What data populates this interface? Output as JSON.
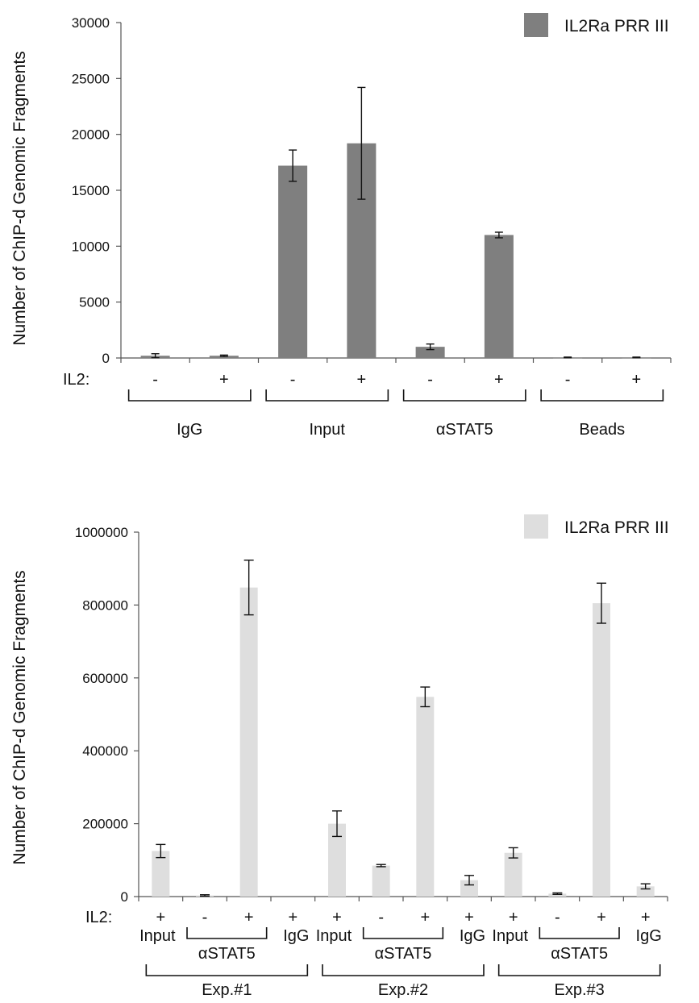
{
  "chart_data": [
    {
      "type": "bar",
      "ylabel": "Number of ChIP-d Genomic Fragments",
      "ylim": [
        0,
        30000
      ],
      "yticks": [
        "0",
        "5000",
        "10000",
        "15000",
        "20000",
        "25000",
        "30000"
      ],
      "row_label": "IL2:",
      "il2": [
        "-",
        "+",
        "-",
        "+",
        "-",
        "+",
        "-",
        "+"
      ],
      "groups": [
        {
          "label": "IgG",
          "bars": [
            0,
            1
          ]
        },
        {
          "label": "Input",
          "bars": [
            2,
            3
          ]
        },
        {
          "label": "αSTAT5",
          "bars": [
            4,
            5
          ]
        },
        {
          "label": "Beads",
          "bars": [
            6,
            7
          ]
        }
      ],
      "series": [
        {
          "name": "IL2Ra PRR III",
          "color": "#7f7f7f",
          "values": [
            200,
            200,
            17200,
            19200,
            1000,
            11000,
            50,
            50
          ],
          "errors": [
            180,
            60,
            1400,
            5000,
            250,
            250,
            30,
            30
          ]
        }
      ],
      "legend_position": "top-right",
      "grid": false
    },
    {
      "type": "bar",
      "ylabel": "Number of ChIP-d Genomic Fragments",
      "ylim": [
        0,
        1000000
      ],
      "yticks": [
        "0",
        "200000",
        "400000",
        "600000",
        "800000",
        "1000000"
      ],
      "row_label": "IL2:",
      "il2": [
        "+",
        "-",
        "+",
        "+",
        "+",
        "-",
        "+",
        "+",
        "+",
        "-",
        "+",
        "+"
      ],
      "categories": [
        "Input",
        "αSTAT5",
        "αSTAT5",
        "IgG",
        "Input",
        "αSTAT5",
        "αSTAT5",
        "IgG",
        "Input",
        "αSTAT5",
        "αSTAT5",
        "IgG"
      ],
      "sublabels": [
        {
          "label": "Input",
          "bars": [
            0
          ]
        },
        {
          "label": "αSTAT5",
          "bars": [
            1,
            2
          ],
          "bracket": true
        },
        {
          "label": "IgG",
          "bars": [
            3
          ]
        },
        {
          "label": "Input",
          "bars": [
            4
          ]
        },
        {
          "label": "αSTAT5",
          "bars": [
            5,
            6
          ],
          "bracket": true
        },
        {
          "label": "IgG",
          "bars": [
            7
          ]
        },
        {
          "label": "Input",
          "bars": [
            8
          ]
        },
        {
          "label": "αSTAT5",
          "bars": [
            9,
            10
          ],
          "bracket": true
        },
        {
          "label": "IgG",
          "bars": [
            11
          ]
        }
      ],
      "experiments": [
        {
          "label": "Exp.#1",
          "bars": [
            0,
            3
          ]
        },
        {
          "label": "Exp.#2",
          "bars": [
            4,
            7
          ]
        },
        {
          "label": "Exp.#3",
          "bars": [
            8,
            11
          ]
        }
      ],
      "series": [
        {
          "name": "IL2Ra PRR III",
          "color": "#dedede",
          "values": [
            125000,
            3000,
            848000,
            0,
            200000,
            85000,
            548000,
            45000,
            120000,
            8000,
            805000,
            28000
          ],
          "errors": [
            18000,
            2000,
            75000,
            0,
            35000,
            3000,
            27000,
            13000,
            14000,
            2000,
            55000,
            7000
          ]
        }
      ],
      "legend_position": "top-right",
      "grid": false
    }
  ]
}
